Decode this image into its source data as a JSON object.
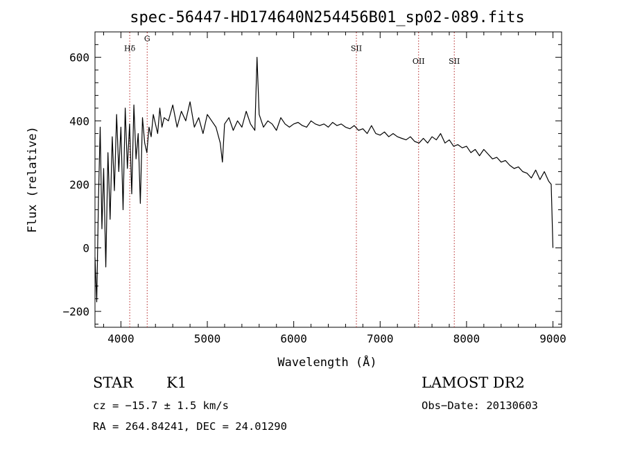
{
  "chart_data": {
    "type": "line",
    "title": "spec-56447-HD174640N254456B01_sp02-089.fits",
    "xlabel": "Wavelength (Å)",
    "ylabel": "Flux (relative)",
    "xlim": [
      3700,
      9100
    ],
    "ylim": [
      -250,
      680
    ],
    "xticks": [
      4000,
      5000,
      6000,
      7000,
      8000,
      9000
    ],
    "xtick_labels": [
      "4000",
      "5000",
      "6000",
      "7000",
      "8000",
      "9000"
    ],
    "yticks": [
      -200,
      0,
      200,
      400,
      600
    ],
    "ytick_labels": [
      "−200",
      "0",
      "200",
      "400",
      "600"
    ],
    "grid": false,
    "line_color": "#000000",
    "marker_line_color": "#b22222",
    "spectral_lines": [
      {
        "label": "Hδ",
        "wavelength": 4102,
        "label_flux": 620
      },
      {
        "label": "G",
        "wavelength": 4304,
        "label_flux": 650
      },
      {
        "label": "SII",
        "wavelength": 6725,
        "label_flux": 620
      },
      {
        "label": "OII",
        "wavelength": 7445,
        "label_flux": 580
      },
      {
        "label": "SII",
        "wavelength": 7858,
        "label_flux": 580
      }
    ],
    "series": [
      {
        "x": [
          3700,
          3720,
          3740,
          3760,
          3780,
          3800,
          3825,
          3850,
          3875,
          3900,
          3925,
          3950,
          3975,
          4000,
          4025,
          4050,
          4075,
          4100,
          4125,
          4150,
          4175,
          4200,
          4225,
          4250,
          4275,
          4300,
          4325,
          4350,
          4375,
          4400,
          4425,
          4450,
          4475,
          4500,
          4550,
          4600,
          4650,
          4700,
          4750,
          4800,
          4850,
          4900,
          4950,
          5000,
          5050,
          5100,
          5150,
          5175,
          5200,
          5250,
          5300,
          5350,
          5400,
          5450,
          5500,
          5550,
          5575,
          5600,
          5650,
          5700,
          5750,
          5800,
          5850,
          5900,
          5950,
          6000,
          6050,
          6100,
          6150,
          6200,
          6250,
          6300,
          6350,
          6400,
          6450,
          6500,
          6550,
          6600,
          6650,
          6700,
          6750,
          6800,
          6850,
          6900,
          6950,
          7000,
          7050,
          7100,
          7150,
          7200,
          7250,
          7300,
          7350,
          7400,
          7450,
          7500,
          7550,
          7600,
          7650,
          7700,
          7750,
          7800,
          7850,
          7900,
          7950,
          8000,
          8050,
          8100,
          8150,
          8200,
          8250,
          8300,
          8350,
          8400,
          8450,
          8500,
          8550,
          8600,
          8650,
          8700,
          8750,
          8800,
          8850,
          8900,
          8950,
          8980,
          9000
        ],
        "y": [
          -30,
          -170,
          150,
          380,
          60,
          250,
          -60,
          300,
          90,
          350,
          180,
          420,
          240,
          380,
          120,
          440,
          250,
          390,
          170,
          450,
          280,
          360,
          140,
          410,
          330,
          300,
          380,
          350,
          420,
          390,
          360,
          440,
          380,
          410,
          400,
          450,
          380,
          430,
          400,
          460,
          380,
          410,
          360,
          420,
          400,
          380,
          330,
          270,
          390,
          410,
          370,
          400,
          380,
          430,
          390,
          370,
          600,
          420,
          380,
          400,
          390,
          370,
          410,
          390,
          380,
          390,
          395,
          385,
          380,
          400,
          390,
          385,
          390,
          380,
          395,
          385,
          390,
          380,
          375,
          385,
          370,
          375,
          360,
          385,
          360,
          355,
          365,
          350,
          360,
          350,
          345,
          340,
          350,
          335,
          330,
          345,
          330,
          350,
          340,
          360,
          330,
          340,
          320,
          325,
          315,
          320,
          300,
          310,
          290,
          310,
          295,
          280,
          285,
          270,
          275,
          260,
          250,
          255,
          240,
          235,
          220,
          245,
          215,
          240,
          210,
          200,
          0
        ]
      }
    ]
  },
  "footer": {
    "object_class": "STAR",
    "subclass": "K1",
    "catalog": "LAMOST DR2",
    "cz": "cz = −15.7 ± 1.5 km/s",
    "obs_date": "Obs−Date: 20130603",
    "coords": "RA = 264.84241, DEC =  24.01290"
  }
}
